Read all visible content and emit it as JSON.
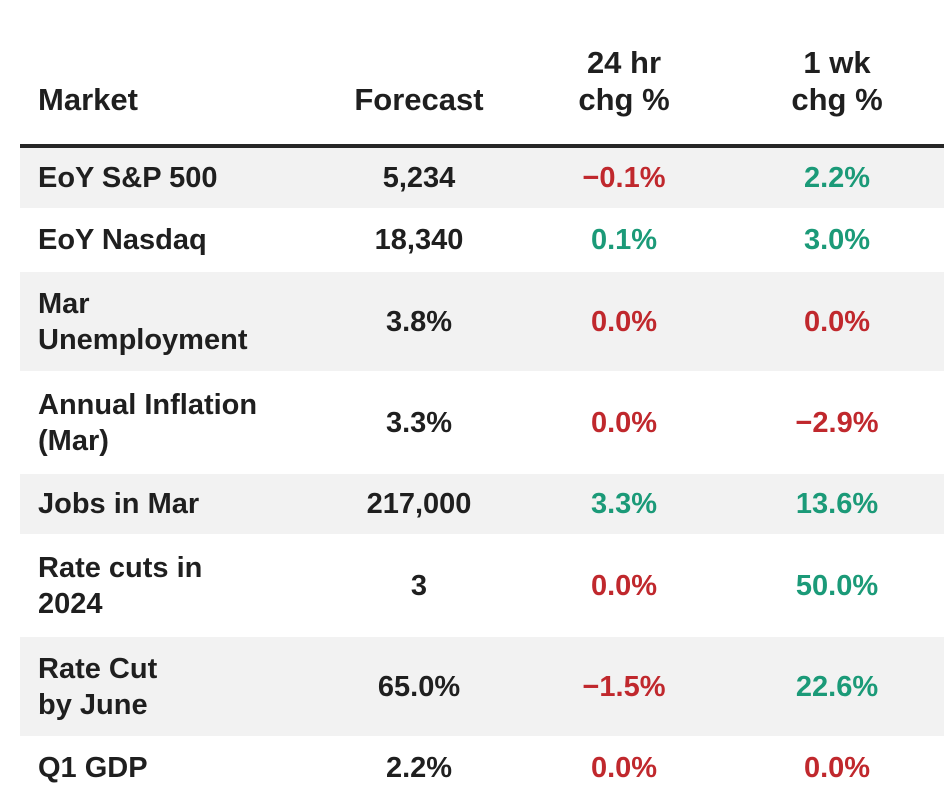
{
  "table": {
    "headers": {
      "market": "Market",
      "forecast": "Forecast",
      "chg_24h_line1": "24 hr",
      "chg_24h_line2": "chg %",
      "chg_1wk_line1": "1 wk",
      "chg_1wk_line2": "chg %"
    },
    "rows": [
      {
        "market": "EoY S&P 500",
        "forecast": "5,234",
        "chg_24h": "−0.1%",
        "chg_1wk": "2.2%"
      },
      {
        "market": "EoY Nasdaq",
        "forecast": "18,340",
        "chg_24h": "0.1%",
        "chg_1wk": "3.0%"
      },
      {
        "market": "Mar\nUnemployment",
        "forecast": "3.8%",
        "chg_24h": "0.0%",
        "chg_1wk": "0.0%"
      },
      {
        "market": "Annual Inflation\n(Mar)",
        "forecast": "3.3%",
        "chg_24h": "0.0%",
        "chg_1wk": "−2.9%"
      },
      {
        "market": "Jobs in Mar",
        "forecast": "217,000",
        "chg_24h": "3.3%",
        "chg_1wk": "13.6%"
      },
      {
        "market": "Rate cuts in\n2024",
        "forecast": "3",
        "chg_24h": "0.0%",
        "chg_1wk": "50.0%"
      },
      {
        "market": "Rate Cut\nby June",
        "forecast": "65.0%",
        "chg_24h": "−1.5%",
        "chg_1wk": "22.6%"
      },
      {
        "market": "Q1 GDP",
        "forecast": "2.2%",
        "chg_24h": "0.0%",
        "chg_1wk": "0.0%"
      }
    ]
  },
  "colors": {
    "negative": "#c0282d",
    "positive": "#1b9a78",
    "neutral": "#c0282d",
    "stripe": "#f2f2f2"
  }
}
